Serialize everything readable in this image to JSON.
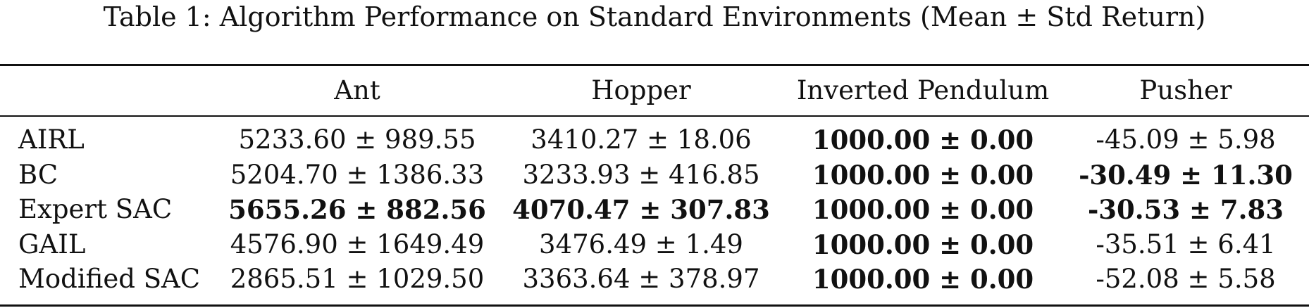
{
  "caption": "Table 1: Algorithm Performance on Standard Environments (Mean ± Std Return)",
  "columns": [
    "",
    "Ant",
    "Hopper",
    "Inverted Pendulum",
    "Pusher"
  ],
  "rows": [
    {
      "name": "AIRL",
      "values": [
        "5233.60 ± 989.55",
        "3410.27 ± 18.06",
        "1000.00 ± 0.00",
        "-45.09 ± 5.98"
      ],
      "bold": [
        false,
        false,
        true,
        false
      ]
    },
    {
      "name": "BC",
      "values": [
        "5204.70 ± 1386.33",
        "3233.93 ± 416.85",
        "1000.00 ± 0.00",
        "-30.49 ± 11.30"
      ],
      "bold": [
        false,
        false,
        true,
        true
      ]
    },
    {
      "name": "Expert SAC",
      "values": [
        "5655.26 ± 882.56",
        "4070.47 ± 307.83",
        "1000.00 ± 0.00",
        "-30.53 ± 7.83"
      ],
      "bold": [
        true,
        true,
        true,
        true
      ]
    },
    {
      "name": "GAIL",
      "values": [
        "4576.90 ± 1649.49",
        "3476.49 ± 1.49",
        "1000.00 ± 0.00",
        "-35.51 ± 6.41"
      ],
      "bold": [
        false,
        false,
        true,
        false
      ]
    },
    {
      "name": "Modified SAC",
      "values": [
        "2865.51 ± 1029.50",
        "3363.64 ± 378.97",
        "1000.00 ± 0.00",
        "-52.08 ± 5.58"
      ],
      "bold": [
        false,
        false,
        true,
        false
      ]
    }
  ]
}
